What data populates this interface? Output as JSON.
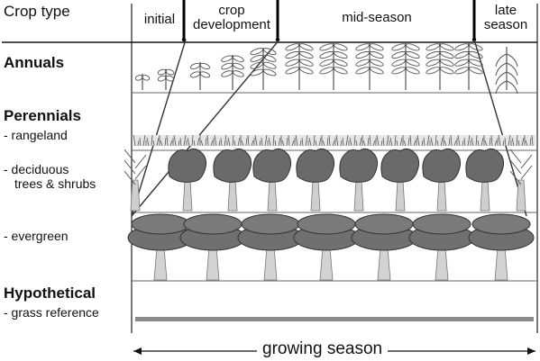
{
  "header": {
    "crop_type": "Crop type",
    "stages": {
      "initial": "initial",
      "development_1": "crop",
      "development_2": "development",
      "mid": "mid-season",
      "late_1": "late",
      "late_2": "season"
    }
  },
  "groups": {
    "annuals": "Annuals",
    "perennials": "Perennials",
    "hypothetical": "Hypothetical"
  },
  "rows": {
    "rangeland": "- rangeland",
    "deciduous_1": "- deciduous",
    "deciduous_2": "trees & shrubs",
    "evergreen": "- evergreen",
    "grass": "- grass reference"
  },
  "footer": {
    "growing_season": "growing season"
  }
}
